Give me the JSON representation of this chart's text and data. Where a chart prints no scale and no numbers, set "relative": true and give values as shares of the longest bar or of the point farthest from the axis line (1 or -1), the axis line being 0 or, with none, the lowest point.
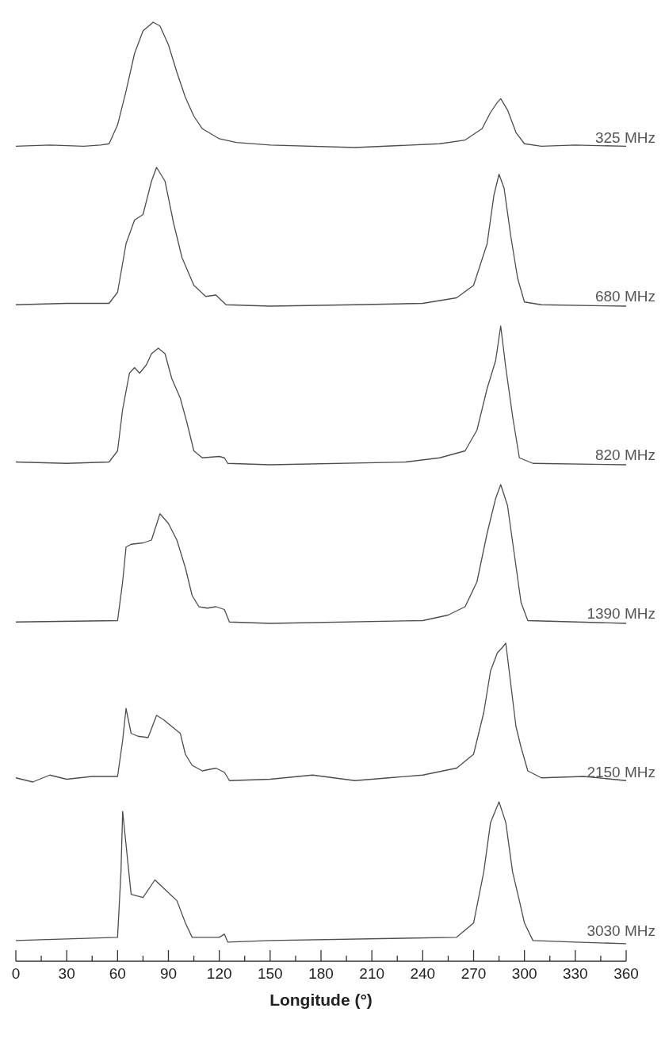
{
  "chart_data": [
    {
      "type": "line",
      "relative": true,
      "xlim": [
        0,
        360
      ],
      "tick_labels": false,
      "x": [
        0,
        20,
        40,
        50,
        55,
        60,
        65,
        70,
        75,
        81,
        85,
        90,
        95,
        100,
        105,
        110,
        120,
        130,
        150,
        200,
        250,
        265,
        275,
        280,
        284,
        286,
        290,
        295,
        300,
        310,
        330,
        360
      ],
      "series": [
        {
          "name": "325 MHz",
          "color": "#4d4d4d",
          "values": [
            0.01,
            0.02,
            0.01,
            0.02,
            0.03,
            0.18,
            0.45,
            0.75,
            0.93,
            1.0,
            0.97,
            0.82,
            0.6,
            0.4,
            0.25,
            0.15,
            0.07,
            0.04,
            0.02,
            0.0,
            0.03,
            0.06,
            0.15,
            0.28,
            0.36,
            0.39,
            0.3,
            0.12,
            0.03,
            0.01,
            0.02,
            0.01
          ]
        }
      ]
    },
    {
      "type": "line",
      "relative": true,
      "xlim": [
        0,
        360
      ],
      "tick_labels": false,
      "x": [
        0,
        30,
        55,
        60,
        65,
        70,
        75,
        80,
        83,
        88,
        93,
        98,
        105,
        112,
        118,
        124,
        150,
        200,
        240,
        260,
        270,
        278,
        282,
        285,
        288,
        292,
        296,
        300,
        310,
        360
      ],
      "series": [
        {
          "name": "680 MHz",
          "color": "#4d4d4d",
          "values": [
            0.01,
            0.02,
            0.02,
            0.1,
            0.45,
            0.62,
            0.66,
            0.9,
            1.0,
            0.9,
            0.6,
            0.35,
            0.15,
            0.07,
            0.08,
            0.01,
            0.0,
            0.01,
            0.02,
            0.06,
            0.15,
            0.45,
            0.8,
            0.95,
            0.85,
            0.5,
            0.2,
            0.03,
            0.01,
            0.0
          ]
        }
      ]
    },
    {
      "type": "line",
      "relative": true,
      "xlim": [
        0,
        360
      ],
      "tick_labels": false,
      "x": [
        0,
        30,
        55,
        60,
        63,
        67,
        70,
        73,
        77,
        80,
        84,
        88,
        92,
        97,
        101,
        105,
        110,
        120,
        123,
        125,
        150,
        230,
        250,
        265,
        272,
        278,
        283,
        286,
        289,
        293,
        297,
        305,
        360
      ],
      "series": [
        {
          "name": "820 MHz",
          "color": "#4d4d4d",
          "values": [
            0.02,
            0.01,
            0.02,
            0.1,
            0.4,
            0.66,
            0.7,
            0.66,
            0.72,
            0.8,
            0.84,
            0.8,
            0.62,
            0.48,
            0.3,
            0.1,
            0.05,
            0.06,
            0.05,
            0.01,
            0.0,
            0.02,
            0.05,
            0.1,
            0.25,
            0.55,
            0.75,
            1.0,
            0.7,
            0.35,
            0.05,
            0.01,
            0.0
          ]
        }
      ]
    },
    {
      "type": "line",
      "relative": true,
      "xlim": [
        0,
        360
      ],
      "tick_labels": false,
      "x": [
        0,
        60,
        63,
        65,
        68,
        75,
        80,
        85,
        90,
        95,
        100,
        104,
        108,
        113,
        118,
        123,
        126,
        150,
        240,
        255,
        265,
        272,
        278,
        283,
        286,
        290,
        294,
        298,
        302,
        360
      ],
      "series": [
        {
          "name": "1390 MHz",
          "color": "#4d4d4d",
          "values": [
            0.01,
            0.02,
            0.3,
            0.55,
            0.57,
            0.58,
            0.6,
            0.79,
            0.72,
            0.6,
            0.4,
            0.2,
            0.12,
            0.11,
            0.12,
            0.1,
            0.01,
            0.0,
            0.02,
            0.06,
            0.12,
            0.3,
            0.65,
            0.9,
            1.0,
            0.85,
            0.5,
            0.15,
            0.02,
            0.0
          ]
        }
      ]
    },
    {
      "type": "line",
      "relative": true,
      "xlim": [
        0,
        360
      ],
      "tick_labels": false,
      "x": [
        0,
        10,
        20,
        30,
        45,
        60,
        63,
        65,
        68,
        72,
        78,
        83,
        87,
        92,
        97,
        100,
        104,
        110,
        118,
        123,
        126,
        150,
        175,
        200,
        220,
        240,
        260,
        270,
        276,
        280,
        284,
        287,
        289,
        292,
        295,
        298,
        302,
        310,
        335,
        360
      ],
      "series": [
        {
          "name": "2150 MHz",
          "color": "#4d4d4d",
          "values": [
            0.03,
            0.0,
            0.05,
            0.02,
            0.04,
            0.04,
            0.3,
            0.53,
            0.35,
            0.33,
            0.32,
            0.48,
            0.45,
            0.4,
            0.35,
            0.2,
            0.12,
            0.08,
            0.1,
            0.07,
            0.01,
            0.02,
            0.05,
            0.01,
            0.03,
            0.05,
            0.1,
            0.2,
            0.5,
            0.8,
            0.93,
            0.97,
            1.0,
            0.7,
            0.4,
            0.25,
            0.08,
            0.03,
            0.04,
            0.01
          ]
        }
      ]
    },
    {
      "type": "line",
      "relative": true,
      "xlim": [
        0,
        360
      ],
      "tick_labels": "x",
      "xlabel": "Longitude (°)",
      "xticks": [
        0,
        {
          "value": 15,
          "label": null
        },
        30,
        {
          "value": 45,
          "label": null
        },
        60,
        {
          "value": 75,
          "label": null
        },
        90,
        {
          "value": 105,
          "label": null
        },
        120,
        {
          "value": 135,
          "label": null
        },
        150,
        {
          "value": 165,
          "label": null
        },
        180,
        {
          "value": 195,
          "label": null
        },
        210,
        {
          "value": 225,
          "label": null
        },
        240,
        {
          "value": 255,
          "label": null
        },
        270,
        {
          "value": 285,
          "label": null
        },
        300,
        {
          "value": 315,
          "label": null
        },
        330,
        {
          "value": 345,
          "label": null
        },
        360
      ],
      "x": [
        0,
        30,
        60,
        62,
        63,
        65,
        68,
        75,
        82,
        88,
        95,
        100,
        104,
        120,
        123,
        125,
        150,
        260,
        270,
        276,
        280,
        285,
        289,
        293,
        297,
        300,
        305,
        330,
        360
      ],
      "series": [
        {
          "name": "3030 MHz",
          "color": "#4d4d4d",
          "values": [
            0.13,
            0.14,
            0.15,
            0.56,
            0.94,
            0.73,
            0.42,
            0.4,
            0.51,
            0.45,
            0.38,
            0.24,
            0.15,
            0.15,
            0.17,
            0.12,
            0.13,
            0.15,
            0.24,
            0.56,
            0.87,
            1.0,
            0.87,
            0.56,
            0.38,
            0.24,
            0.13,
            0.12,
            0.11
          ]
        }
      ]
    }
  ]
}
